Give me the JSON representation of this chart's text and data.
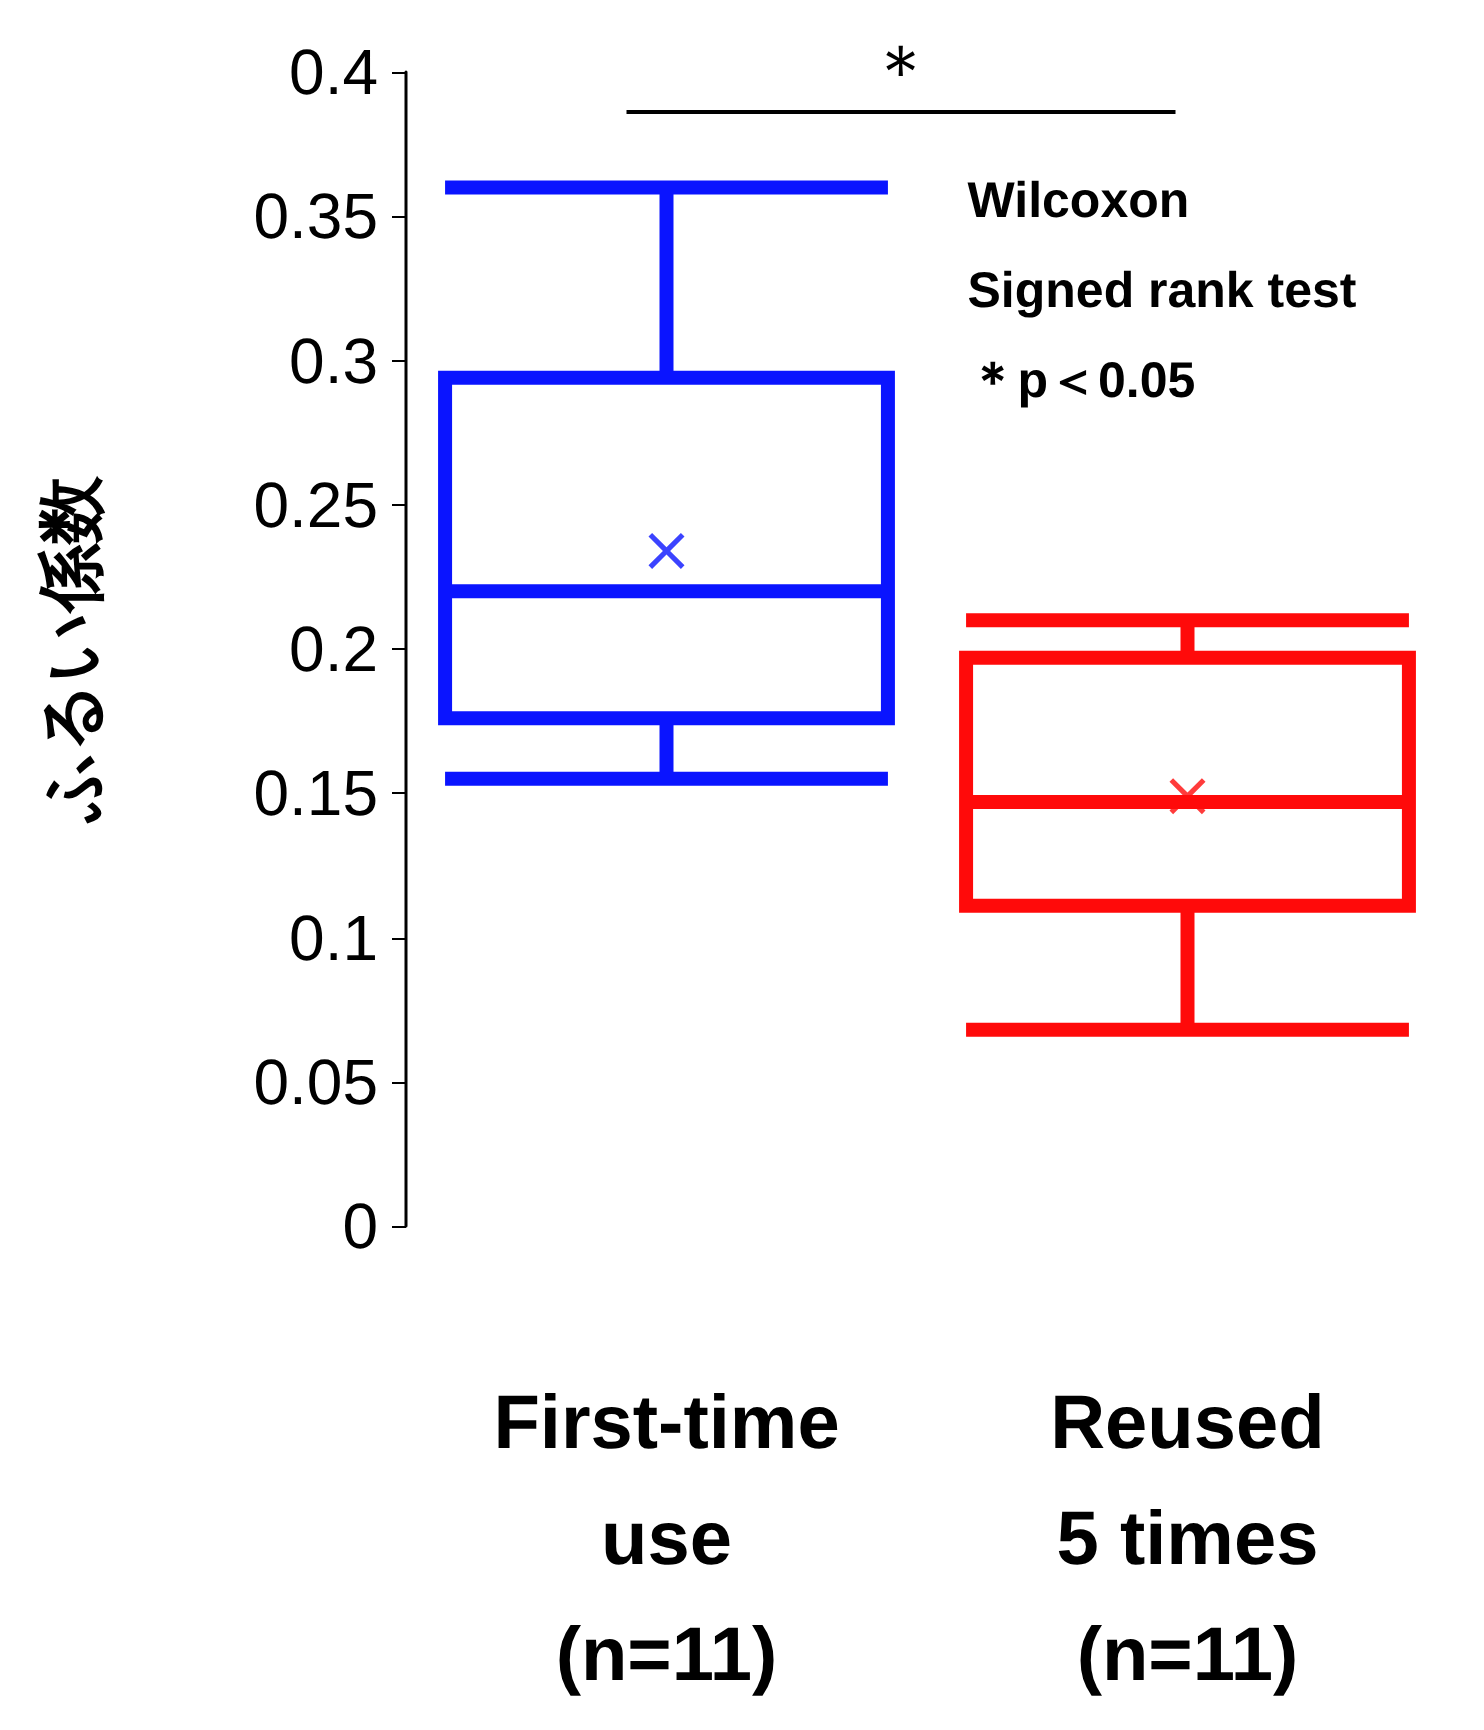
{
  "chart_data": {
    "type": "box",
    "ylabel": "ふるい係数",
    "categories": [
      "First-time\nuse\n(n=11)",
      "Reused\n5 times\n(n=11)"
    ],
    "colors": [
      "#0a14ff",
      "#ff0a0a"
    ],
    "boxes": [
      {
        "low": 0.155,
        "q1": 0.176,
        "median": 0.22,
        "q3": 0.294,
        "high": 0.36,
        "mean": 0.234
      },
      {
        "low": 0.068,
        "q1": 0.111,
        "median": 0.147,
        "q3": 0.197,
        "high": 0.21,
        "mean": 0.149
      }
    ],
    "ylim": [
      0,
      0.4
    ],
    "yticks": [
      0,
      0.05,
      0.1,
      0.15,
      0.2,
      0.25,
      0.3,
      0.35,
      0.4
    ],
    "annotations": [
      "＊",
      "Wilcoxon\nSigned rank test\n＊p＜0.05"
    ]
  }
}
